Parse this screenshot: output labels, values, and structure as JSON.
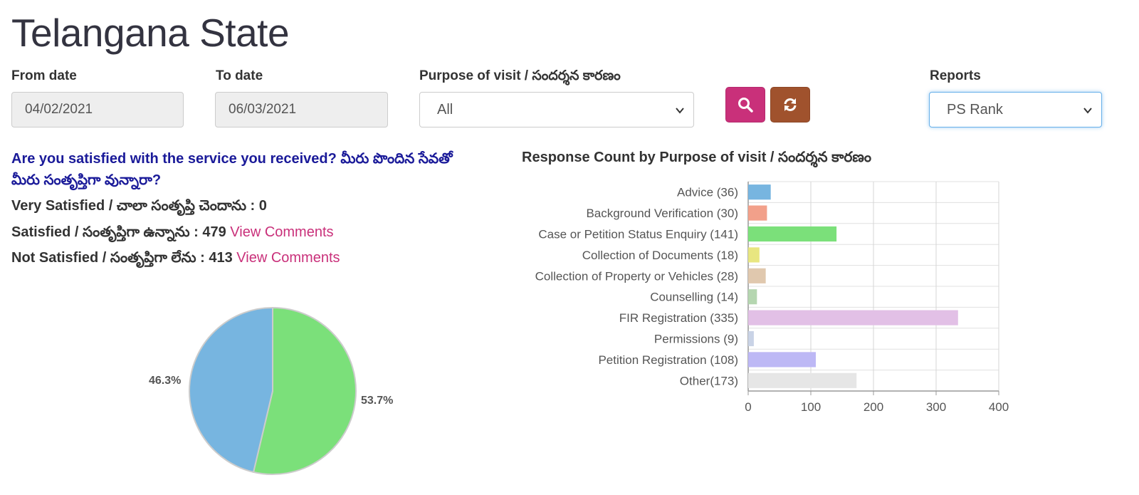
{
  "header": {
    "title": "Telangana State"
  },
  "filters": {
    "from_label": "From date",
    "from_value": "04/02/2021",
    "to_label": "To date",
    "to_value": "06/03/2021",
    "purpose_label": "Purpose of visit / సందర్శన కారణం",
    "purpose_value": "All",
    "reports_label": "Reports",
    "reports_value": "PS Rank",
    "search_icon": "search-icon",
    "refresh_icon": "refresh-icon"
  },
  "satisfaction": {
    "question": "Are you satisfied with the service you received? మీరు పొందిన సేవతో మీరు సంతృప్తిగా వున్నారా?",
    "very_satisfied": "Very Satisfied / చాలా సంతృప్తి చెందాను : 0",
    "satisfied": "Satisfied / సంతృప్తిగా ఉన్నాను : 479",
    "not_satisfied": "Not Satisfied / సంతృప్తిగా లేను : 413",
    "view_comments": "View Comments"
  },
  "colors": {
    "primary": "#c9307a",
    "refresh": "#a0522d",
    "question": "#1a1a99"
  },
  "chart_data": [
    {
      "type": "pie",
      "categories": [
        "Satisfied",
        "Not Satisfied"
      ],
      "values": [
        53.7,
        46.3
      ],
      "labels": [
        "53.7%",
        "46.3%"
      ],
      "colors": [
        "#7be07a",
        "#77b5e0"
      ]
    },
    {
      "type": "bar",
      "orientation": "horizontal",
      "title": "Response Count by Purpose of visit / సందర్శన కారణం",
      "categories": [
        "Advice (36)",
        "Background Verification (30)",
        "Case or Petition Status Enquiry (141)",
        "Collection of Documents (18)",
        "Collection of Property or Vehicles (28)",
        "Counselling (14)",
        "FIR Registration (335)",
        "Permissions (9)",
        "Petition Registration (108)",
        "Other(173)"
      ],
      "values": [
        36,
        30,
        141,
        18,
        28,
        14,
        335,
        9,
        108,
        173
      ],
      "colors": [
        "#77b5e0",
        "#f2a08a",
        "#7be07a",
        "#e8e680",
        "#e0c8ae",
        "#b5d6b0",
        "#e2c0e6",
        "#c9d3e6",
        "#bdb8f5",
        "#e6e6e6"
      ],
      "xlim": [
        0,
        400
      ],
      "xticks": [
        "0",
        "100",
        "200",
        "300",
        "400"
      ],
      "grid": true
    }
  ]
}
